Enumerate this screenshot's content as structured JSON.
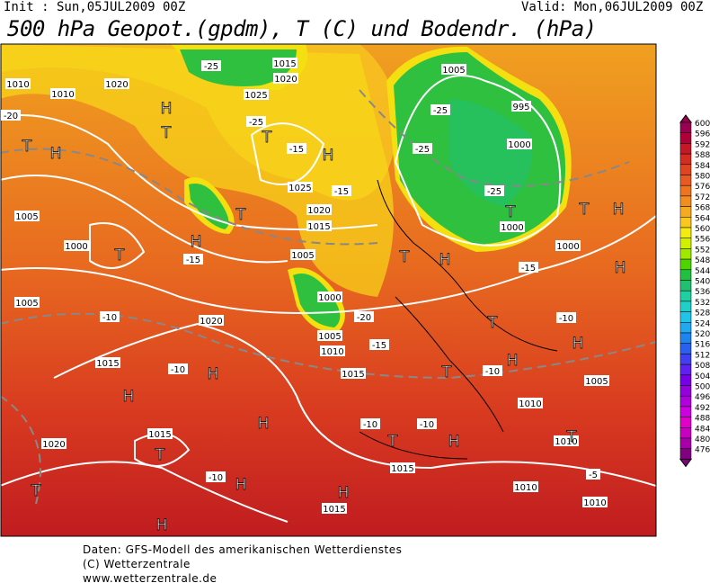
{
  "header": {
    "init": "Init : Sun,05JUL2009 00Z",
    "valid": "Valid: Mon,06JUL2009 00Z",
    "title": "500 hPa Geopot.(gpdm), T (C) und Bodendr. (hPa)"
  },
  "colorbar": {
    "labels": [
      600,
      596,
      592,
      588,
      584,
      580,
      576,
      572,
      568,
      564,
      560,
      556,
      552,
      548,
      544,
      540,
      536,
      532,
      528,
      524,
      520,
      516,
      512,
      508,
      504,
      500,
      496,
      492,
      488,
      484,
      480,
      476
    ],
    "colors": [
      "#9a0050",
      "#b00038",
      "#c41828",
      "#d42c20",
      "#e04420",
      "#e85a20",
      "#ee7420",
      "#f28e20",
      "#f6aa20",
      "#f8c820",
      "#f4ec10",
      "#d0f000",
      "#a0e800",
      "#50d400",
      "#20c040",
      "#20c070",
      "#20d0a0",
      "#20d0c8",
      "#20c4e8",
      "#20a8f0",
      "#2084f0",
      "#2860f0",
      "#4040f0",
      "#6020f0",
      "#7800e8",
      "#9400e0",
      "#b000e0",
      "#cc00e0",
      "#e000c8",
      "#c800c0",
      "#a800a8",
      "#800080"
    ]
  },
  "map_labels": [
    "1010",
    "1010",
    "1020",
    "-20",
    "T",
    "H",
    "H",
    "T",
    "-25",
    "1015",
    "1020",
    "1025",
    "-25",
    "T",
    "-15",
    "H",
    "1025",
    "-15",
    "1020",
    "1015",
    "T",
    "H",
    "1005",
    "1000",
    "T",
    "-15",
    "1005",
    "1000",
    "1005",
    "-20",
    "1010",
    "1015",
    "-15",
    "1005",
    "995",
    "-25",
    "1000",
    "-25",
    "T",
    "1000",
    "-25",
    "H",
    "T",
    "-15",
    "1000",
    "H",
    "T",
    "T",
    "H",
    "1005",
    "-10",
    "1020",
    "1015",
    "-10",
    "H",
    "H",
    "H",
    "1015",
    "T",
    "1020",
    "T",
    "H",
    "H",
    "-10",
    "H",
    "1015",
    "T",
    "H",
    "-10",
    "-10",
    "H",
    "1005",
    "1010",
    "T",
    "-10",
    "-10",
    "1015",
    "H",
    "1010",
    "T",
    "1010",
    "1010",
    "-5"
  ],
  "footer": {
    "line1": "Daten: GFS-Modell des amerikanischen Wetterdienstes",
    "line2": "(C) Wetterzentrale",
    "line3": "www.wetterzentrale.de"
  }
}
